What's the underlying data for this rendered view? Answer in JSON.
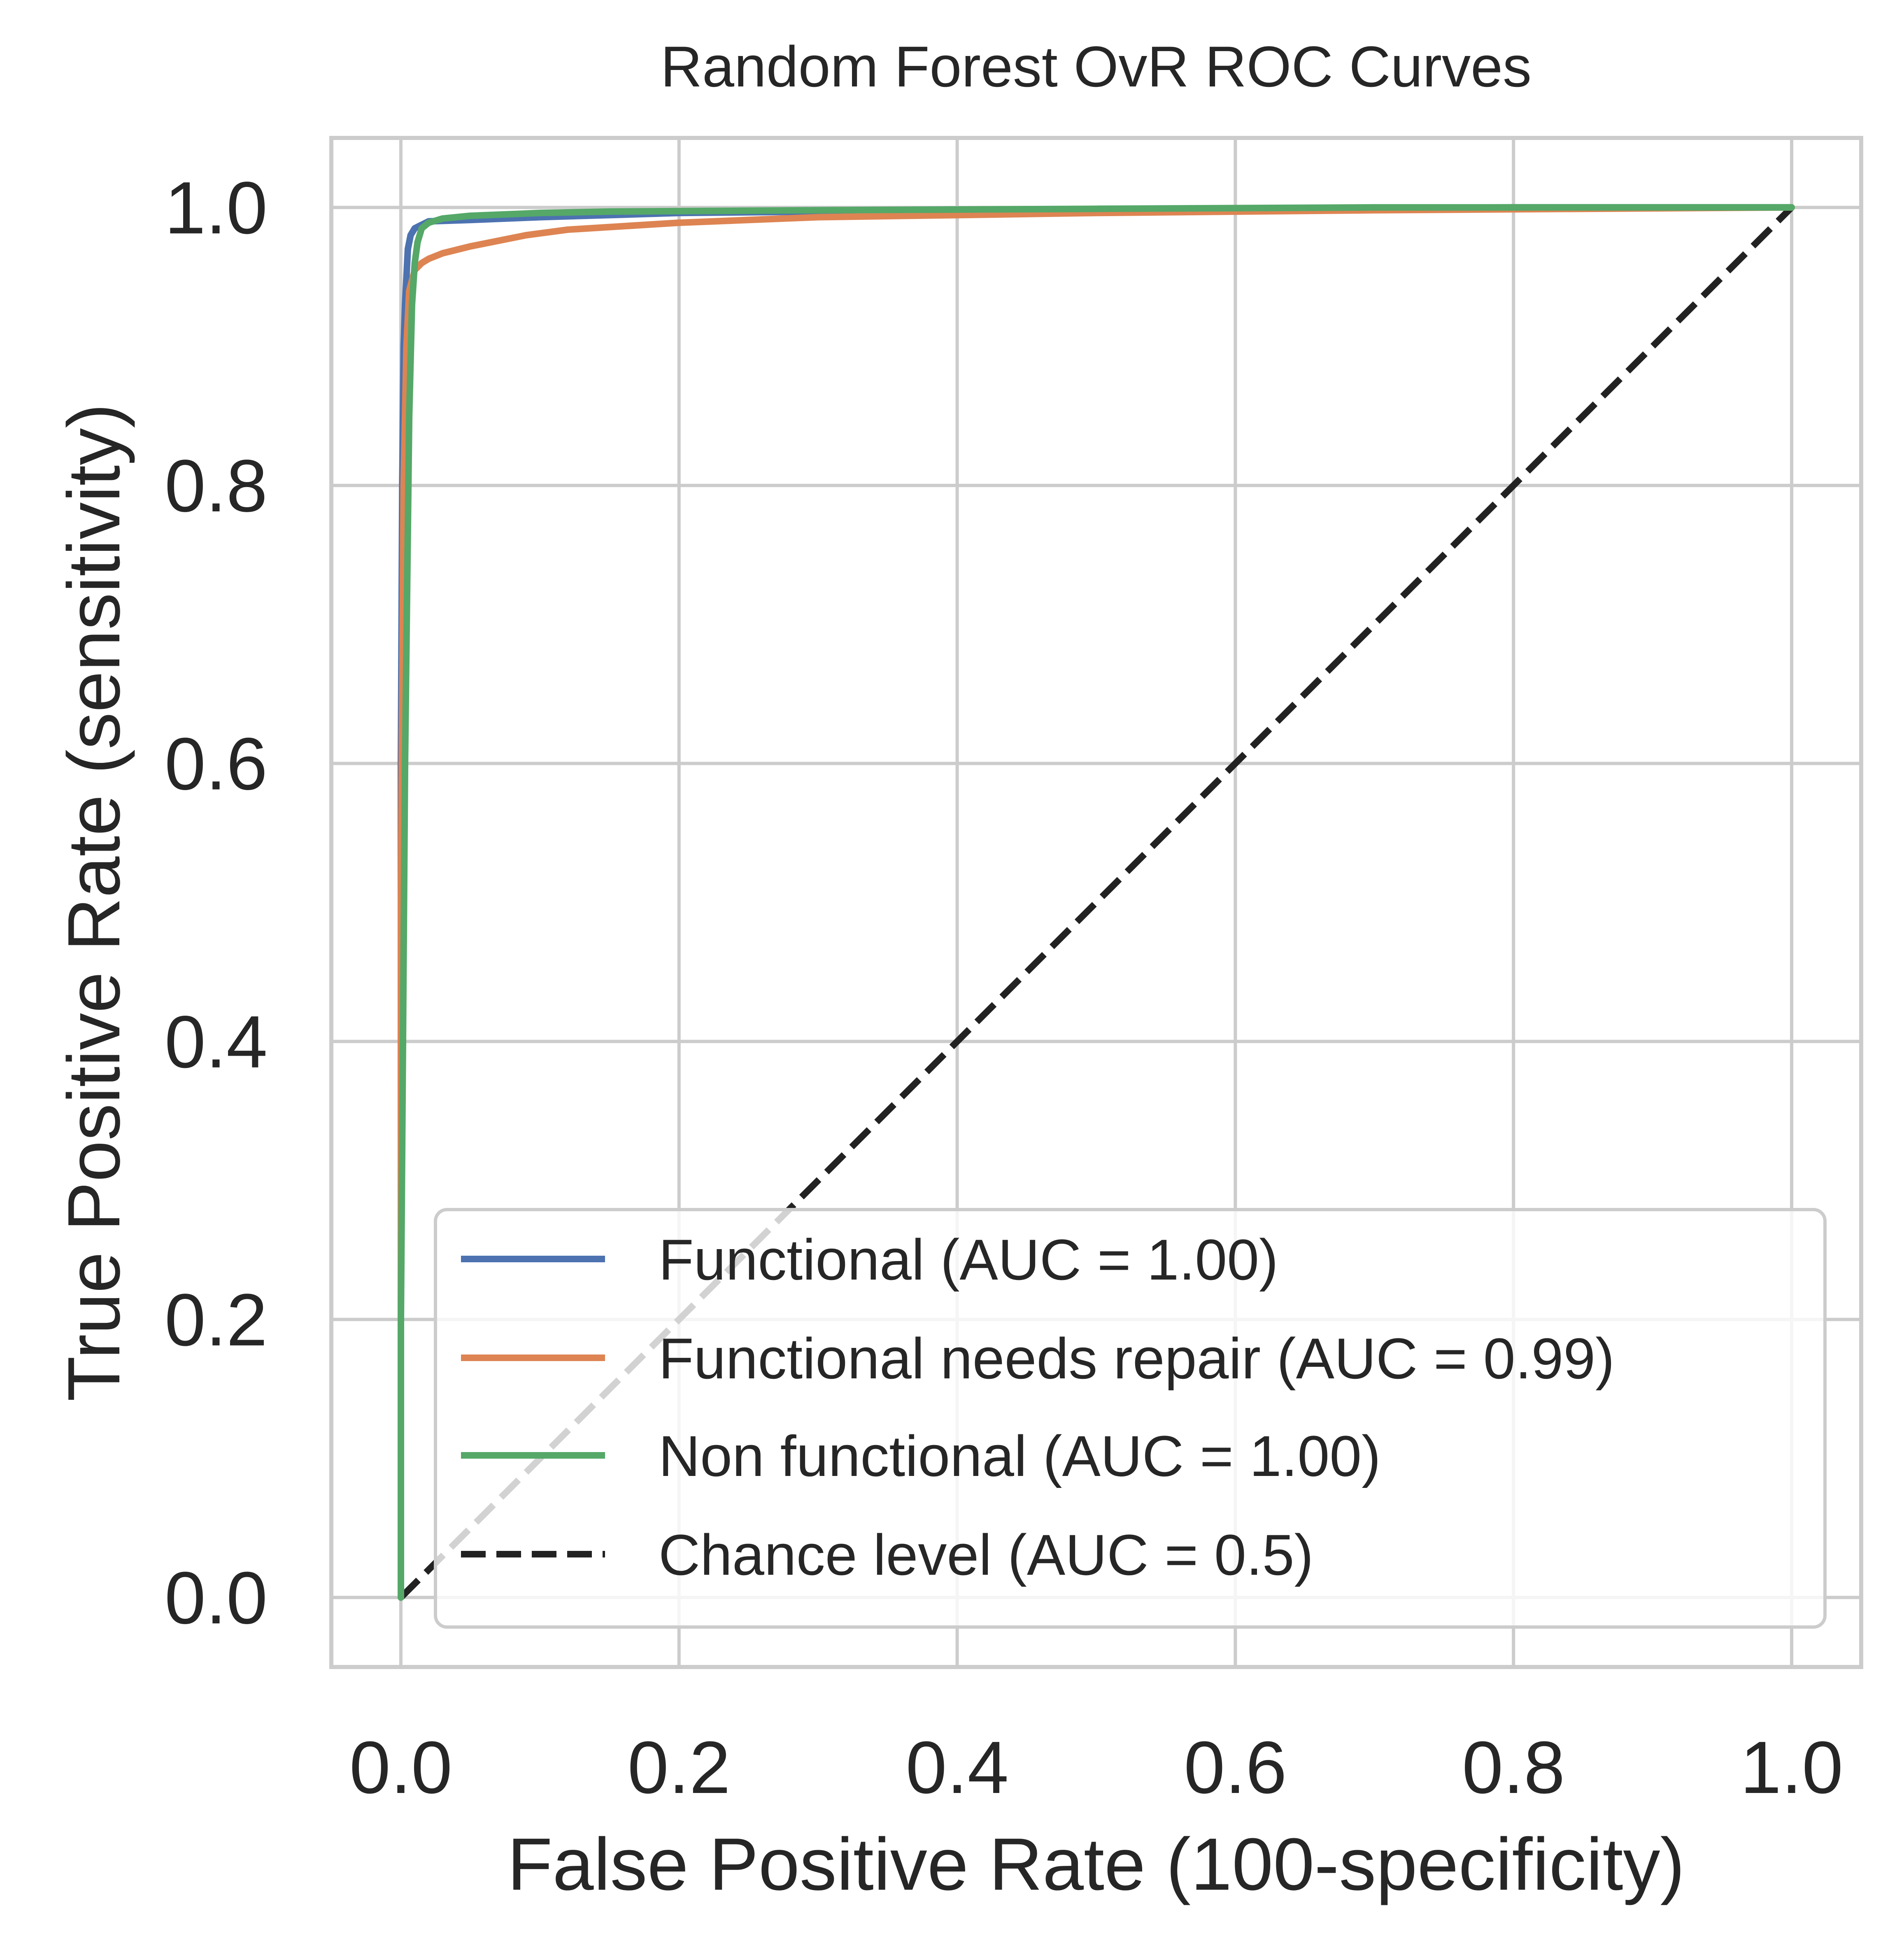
{
  "chart_data": {
    "type": "line",
    "title": "Random Forest OvR ROC Curves",
    "xlabel": "False Positive Rate (100-specificity)",
    "ylabel": "True Positive Rate (sensitivity)",
    "xlim": [
      -0.05,
      1.05
    ],
    "ylim": [
      -0.05,
      1.05
    ],
    "xticks": [
      0.0,
      0.2,
      0.4,
      0.6,
      0.8,
      1.0
    ],
    "yticks": [
      0.0,
      0.2,
      0.4,
      0.6,
      0.8,
      1.0
    ],
    "xtick_labels": [
      "0.0",
      "0.2",
      "0.4",
      "0.6",
      "0.8",
      "1.0"
    ],
    "ytick_labels": [
      "0.0",
      "0.2",
      "0.4",
      "0.6",
      "0.8",
      "1.0"
    ],
    "grid": true,
    "legend_position": "lower-right",
    "series": [
      {
        "name": "Functional (AUC = 1.00)",
        "color": "#4c72b0",
        "style": "solid",
        "x": [
          0.0,
          0.0,
          0.001,
          0.002,
          0.003,
          0.004,
          0.005,
          0.007,
          0.01,
          0.02,
          0.05,
          0.1,
          0.2,
          0.4,
          0.6,
          0.8,
          1.0
        ],
        "y": [
          0.0,
          0.6,
          0.8,
          0.9,
          0.93,
          0.95,
          0.97,
          0.98,
          0.985,
          0.99,
          0.991,
          0.993,
          0.996,
          0.998,
          0.999,
          1.0,
          1.0
        ]
      },
      {
        "name": "Functional needs repair (AUC = 0.99)",
        "color": "#dd8452",
        "style": "solid",
        "x": [
          0.0,
          0.0,
          0.002,
          0.004,
          0.006,
          0.01,
          0.015,
          0.02,
          0.03,
          0.05,
          0.07,
          0.09,
          0.12,
          0.2,
          0.3,
          0.5,
          0.7,
          1.0
        ],
        "y": [
          0.0,
          0.5,
          0.8,
          0.9,
          0.94,
          0.955,
          0.96,
          0.963,
          0.967,
          0.972,
          0.976,
          0.98,
          0.984,
          0.989,
          0.993,
          0.996,
          0.998,
          1.0
        ]
      },
      {
        "name": "Non functional (AUC = 1.00)",
        "color": "#55a868",
        "style": "solid",
        "x": [
          0.0,
          0.0,
          0.003,
          0.006,
          0.008,
          0.01,
          0.012,
          0.015,
          0.02,
          0.03,
          0.05,
          0.1,
          0.15,
          0.3,
          0.5,
          0.7,
          1.0
        ],
        "y": [
          0.0,
          0.2,
          0.6,
          0.85,
          0.93,
          0.96,
          0.975,
          0.985,
          0.989,
          0.992,
          0.994,
          0.996,
          0.997,
          0.998,
          0.999,
          1.0,
          1.0
        ]
      },
      {
        "name": "Chance level (AUC = 0.5)",
        "color": "#222222",
        "style": "dashed",
        "x": [
          0.0,
          1.0
        ],
        "y": [
          0.0,
          1.0
        ]
      }
    ]
  }
}
